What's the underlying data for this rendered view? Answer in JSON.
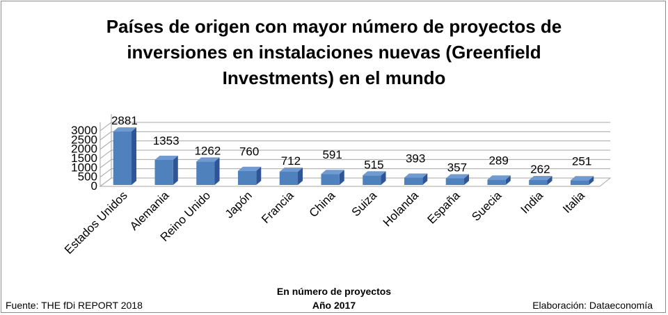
{
  "title_lines": [
    "Países de origen con mayor número de proyectos de",
    "inversiones en instalaciones nuevas (Greenfield",
    "Investments) en el mundo"
  ],
  "footer": {
    "source": "Fuente: THE fDi REPORT 2018",
    "credit": "Elaboración: Dataeconomía",
    "caption_line1": "En número de proyectos",
    "caption_line2": "Año 2017"
  },
  "chart_data": {
    "type": "bar",
    "title": "Países de origen con mayor número de proyectos de inversiones en instalaciones nuevas (Greenfield Investments) en el mundo",
    "categories": [
      "Estados Unidos",
      "Alemania",
      "Reino Unido",
      "Japón",
      "Francia",
      "China",
      "Suiza",
      "Holanda",
      "España",
      "Suecia",
      "India",
      "Italia"
    ],
    "values": [
      2881,
      1353,
      1262,
      760,
      712,
      591,
      515,
      393,
      357,
      289,
      262,
      251
    ],
    "yticks": [
      0,
      500,
      1000,
      1500,
      2000,
      2500,
      3000
    ],
    "ylim": [
      0,
      3000
    ],
    "grid": true,
    "bar_color": "#4f81bd",
    "bar_dark": "#2f5597",
    "bar_top": "#6d9bd5",
    "data_labels": true
  }
}
